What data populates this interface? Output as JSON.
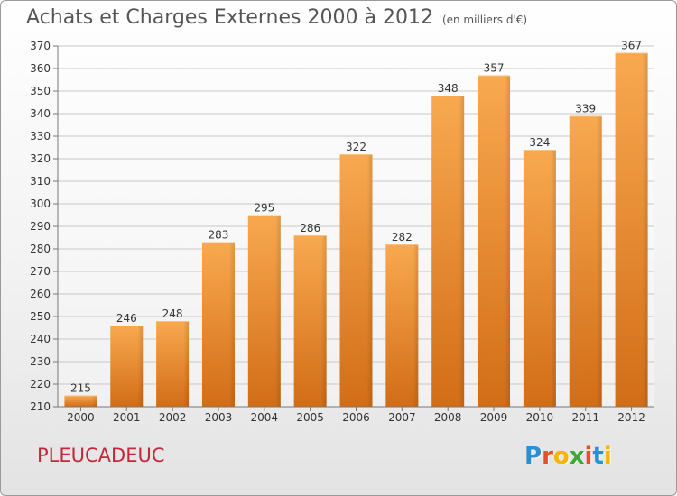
{
  "header": {
    "title": "Achats et Charges Externes 2000 à 2012",
    "subtitle": "(en milliers d'€)"
  },
  "footer": {
    "commune": "PLEUCADEUC",
    "logo_letters": [
      "P",
      "r",
      "o",
      "x",
      "i",
      "t",
      "i"
    ],
    "logo_colors": [
      "#2b8fd4",
      "#e94e2b",
      "#f7b500",
      "#3aa935",
      "#e94e2b",
      "#2b8fd4",
      "#f7b500"
    ]
  },
  "chart_data": {
    "type": "bar",
    "title": "Achats et Charges Externes 2000 à 2012",
    "subtitle": "(en milliers d'€)",
    "categories": [
      "2000",
      "2001",
      "2002",
      "2003",
      "2004",
      "2005",
      "2006",
      "2007",
      "2008",
      "2009",
      "2010",
      "2011",
      "2012"
    ],
    "values": [
      215,
      246,
      248,
      283,
      295,
      286,
      322,
      282,
      348,
      357,
      324,
      339,
      367
    ],
    "ylim": [
      210,
      370
    ],
    "yticks": [
      210,
      220,
      230,
      240,
      250,
      260,
      270,
      280,
      290,
      300,
      310,
      320,
      330,
      340,
      350,
      360,
      370
    ],
    "grid": true,
    "bar_color": "#f39a3e",
    "bar_color_dark": "#d9711a",
    "legend": "none"
  }
}
